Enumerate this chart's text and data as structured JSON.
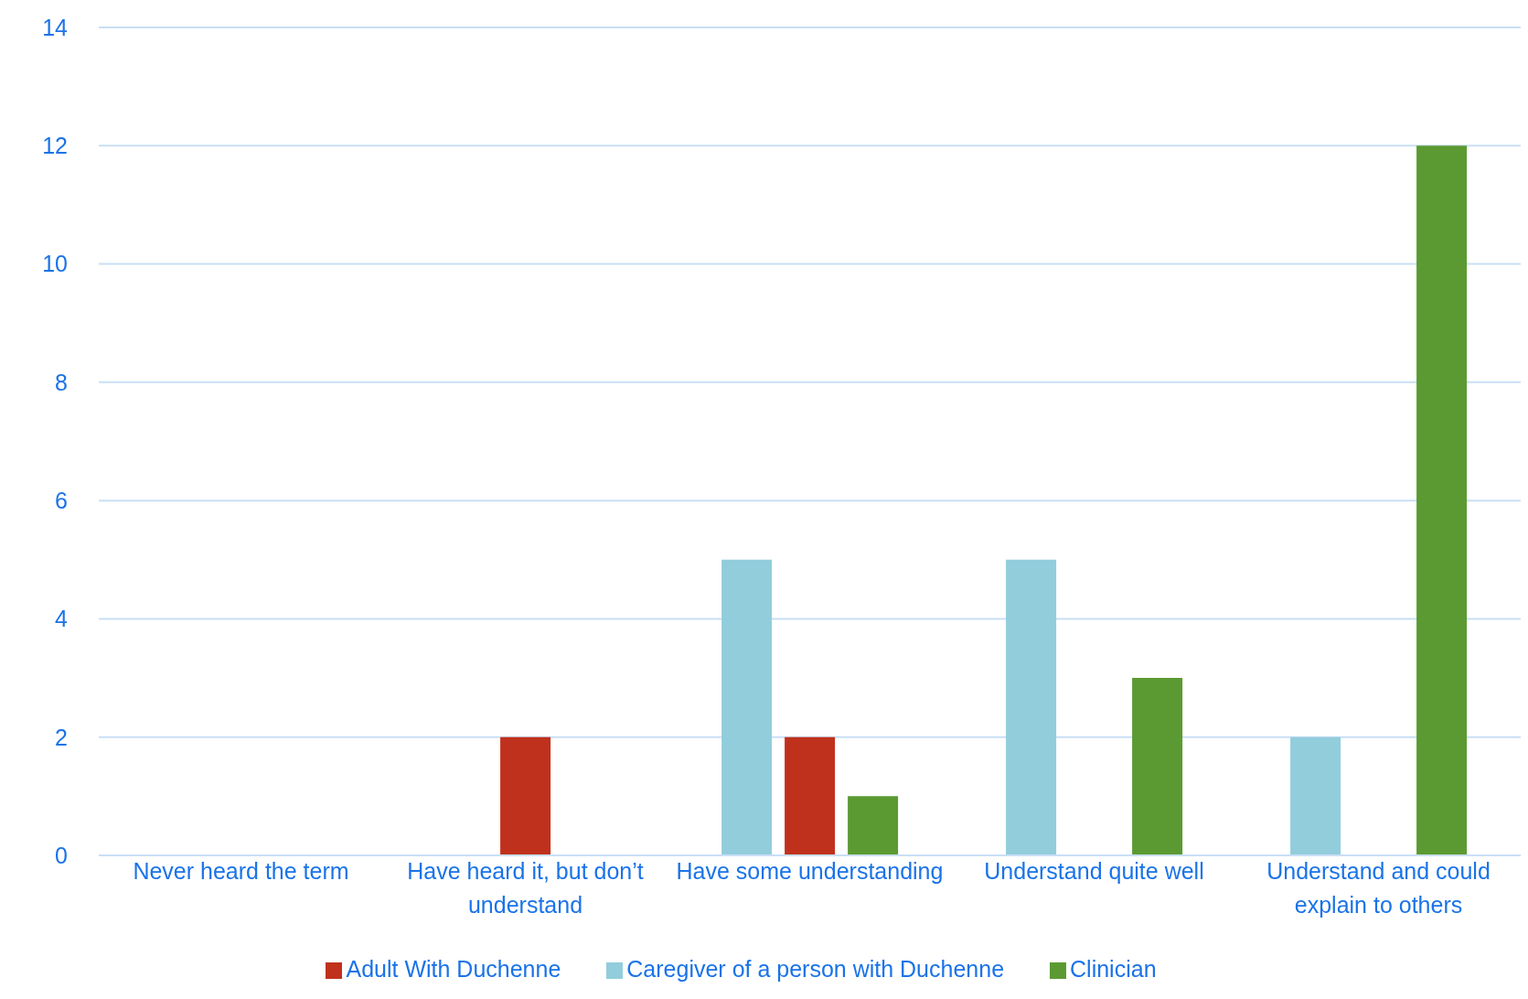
{
  "chart_data": {
    "type": "bar",
    "categories": [
      "Never heard the term",
      "Have heard it, but don’t understand",
      "Have some understanding",
      "Understand quite well",
      "Understand and could explain to others"
    ],
    "series": [
      {
        "name": "Caregiver of a person with Duchenne",
        "color": "#92cddc",
        "values": [
          0,
          0,
          5,
          5,
          2
        ]
      },
      {
        "name": "Adult With Duchenne",
        "color": "#c0311d",
        "values": [
          0,
          2,
          2,
          0,
          0
        ]
      },
      {
        "name": "Clinician",
        "color": "#5b9a32",
        "values": [
          0,
          0,
          1,
          3,
          12
        ]
      }
    ],
    "ylim": [
      0,
      14
    ],
    "yticks": [
      0,
      2,
      4,
      6,
      8,
      10,
      12,
      14
    ],
    "grid": "y",
    "legend": "bottom"
  }
}
